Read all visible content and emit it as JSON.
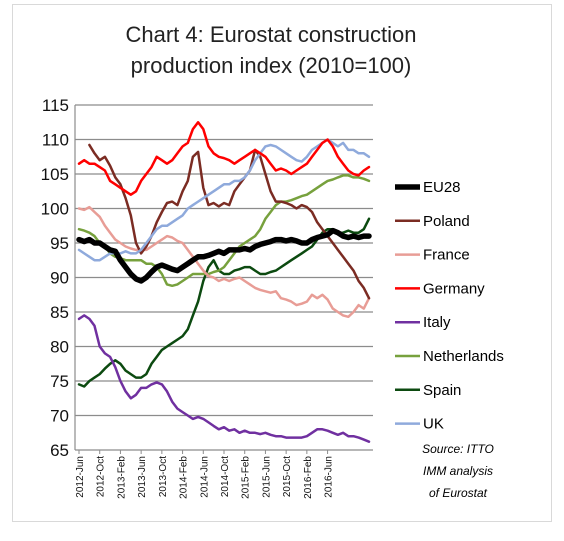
{
  "chart_data": {
    "type": "line",
    "title": [
      "Chart 4:  Eurostat construction",
      "production index (2010=100)"
    ],
    "xlabel": "",
    "ylabel": "",
    "ylim": [
      65,
      115
    ],
    "yticks": [
      65,
      70,
      75,
      80,
      85,
      90,
      95,
      100,
      105,
      110,
      115
    ],
    "xticks": [
      "2012-Jun",
      "2012-Oct",
      "2013-Feb",
      "2013-Jun",
      "2013-Oct",
      "2014-Feb",
      "2014-Jun",
      "2014-Oct",
      "2015-Feb",
      "2015-Jun",
      "2015-Oct",
      "2016-Feb",
      "2016-Jun"
    ],
    "x_start": "2012-06",
    "x_end": "2016-07",
    "grid": "horizontal",
    "legend": "right",
    "source_lines": [
      "Source: ITTO",
      "IMM analysis",
      "of  Eurostat"
    ],
    "series": [
      {
        "name": "EU28",
        "color": "#000000",
        "width": 5.5,
        "values": [
          95.5,
          95.2,
          95.5,
          95.0,
          95.0,
          94.5,
          94.0,
          93.8,
          92.5,
          91.5,
          90.5,
          89.8,
          89.5,
          90.0,
          90.8,
          91.5,
          91.8,
          91.5,
          91.2,
          91.0,
          91.5,
          92.0,
          92.5,
          93.0,
          93.0,
          93.2,
          93.5,
          93.8,
          93.5,
          94.0,
          94.0,
          94.0,
          94.2,
          94.0,
          94.5,
          94.8,
          95.0,
          95.2,
          95.5,
          95.5,
          95.3,
          95.5,
          95.3,
          95.0,
          95.0,
          95.5,
          95.8,
          96.0,
          96.2,
          96.8,
          96.5,
          96.0,
          95.8,
          96.0,
          95.8,
          96.0,
          96.0
        ]
      },
      {
        "name": "Poland",
        "color": "#7b2c23",
        "width": 2.5,
        "values": [
          null,
          null,
          109.2,
          108.0,
          107.0,
          107.5,
          106.2,
          104.5,
          103.5,
          101.5,
          99.0,
          95.0,
          93.5,
          94.5,
          96.0,
          98.0,
          99.5,
          100.8,
          101.0,
          100.5,
          102.5,
          104.0,
          107.5,
          108.2,
          103.0,
          100.5,
          100.8,
          100.3,
          100.8,
          100.5,
          102.5,
          103.5,
          104.5,
          105.5,
          108.5,
          107.5,
          105.0,
          102.5,
          101.0,
          101.0,
          100.8,
          100.5,
          100.0,
          100.5,
          100.2,
          99.5,
          98.0,
          97.0,
          96.0,
          95.0,
          94.0,
          93.0,
          92.0,
          91.0,
          89.5,
          88.5,
          87.0
        ]
      },
      {
        "name": "France",
        "color": "#e89d96",
        "width": 2.5,
        "values": [
          100.0,
          99.8,
          100.2,
          99.5,
          98.8,
          97.5,
          96.5,
          95.5,
          95.0,
          94.5,
          94.2,
          94.0,
          94.0,
          94.0,
          94.5,
          95.0,
          95.5,
          96.0,
          95.8,
          95.3,
          95.0,
          94.0,
          93.0,
          92.0,
          91.0,
          90.2,
          90.0,
          89.5,
          89.8,
          89.5,
          89.8,
          90.0,
          89.5,
          89.0,
          88.5,
          88.2,
          88.0,
          87.8,
          88.0,
          87.0,
          86.8,
          86.5,
          86.0,
          86.2,
          86.5,
          87.5,
          87.0,
          87.5,
          86.8,
          85.5,
          85.0,
          84.5,
          84.3,
          85.0,
          86.0,
          85.5,
          87.0
        ]
      },
      {
        "name": "Germany",
        "color": "#ff0000",
        "width": 2.5,
        "values": [
          106.5,
          107.0,
          106.5,
          106.5,
          106.0,
          105.5,
          104.0,
          103.5,
          103.0,
          102.5,
          102.0,
          102.5,
          104.0,
          105.0,
          106.0,
          107.5,
          107.0,
          106.5,
          107.0,
          108.0,
          109.0,
          109.5,
          111.5,
          112.5,
          111.5,
          109.0,
          108.0,
          107.5,
          107.3,
          107.0,
          106.5,
          107.0,
          107.5,
          108.0,
          108.5,
          108.0,
          107.5,
          106.5,
          105.5,
          105.8,
          105.5,
          105.0,
          105.5,
          106.0,
          106.5,
          107.5,
          108.5,
          109.5,
          110.0,
          109.0,
          107.5,
          106.5,
          105.5,
          105.0,
          104.8,
          105.5,
          106.0
        ]
      },
      {
        "name": "Italy",
        "color": "#7030a0",
        "width": 2.5,
        "values": [
          84.0,
          84.5,
          84.0,
          83.0,
          80.0,
          79.0,
          78.5,
          77.0,
          75.0,
          73.5,
          72.5,
          73.0,
          74.0,
          74.0,
          74.5,
          74.8,
          74.5,
          73.5,
          72.0,
          71.0,
          70.5,
          70.0,
          69.5,
          69.8,
          69.5,
          69.0,
          68.5,
          68.0,
          68.3,
          67.8,
          68.0,
          67.5,
          67.8,
          67.5,
          67.5,
          67.3,
          67.5,
          67.2,
          67.0,
          67.0,
          66.8,
          66.8,
          66.8,
          66.8,
          67.0,
          67.5,
          68.0,
          68.0,
          67.8,
          67.5,
          67.2,
          67.5,
          67.0,
          67.0,
          66.8,
          66.5,
          66.2
        ]
      },
      {
        "name": "Netherlands",
        "color": "#77a13d",
        "width": 2.5,
        "values": [
          97.0,
          96.8,
          96.5,
          96.0,
          95.0,
          94.5,
          93.5,
          93.0,
          92.8,
          92.5,
          92.5,
          92.5,
          92.5,
          92.0,
          92.0,
          91.5,
          90.5,
          89.0,
          88.8,
          89.0,
          89.5,
          90.0,
          90.5,
          90.5,
          90.5,
          90.5,
          90.8,
          91.0,
          91.5,
          92.5,
          93.5,
          94.5,
          95.0,
          95.5,
          96.0,
          97.0,
          98.5,
          99.5,
          100.5,
          101.0,
          101.0,
          101.2,
          101.5,
          101.8,
          102.0,
          102.5,
          103.0,
          103.5,
          104.0,
          104.2,
          104.5,
          104.8,
          104.8,
          104.5,
          104.5,
          104.3,
          104.0
        ]
      },
      {
        "name": "Spain",
        "color": "#0c4a10",
        "width": 2.5,
        "values": [
          74.5,
          74.2,
          75.0,
          75.5,
          76.0,
          76.8,
          77.5,
          78.0,
          77.5,
          76.5,
          76.0,
          75.5,
          75.5,
          76.0,
          77.5,
          78.5,
          79.5,
          80.0,
          80.5,
          81.0,
          81.5,
          82.5,
          84.5,
          86.5,
          89.5,
          91.5,
          92.5,
          91.0,
          90.5,
          90.5,
          91.0,
          91.2,
          91.5,
          91.5,
          91.0,
          90.5,
          90.5,
          90.8,
          91.0,
          91.5,
          92.0,
          92.5,
          93.0,
          93.5,
          94.0,
          94.5,
          95.5,
          96.5,
          97.0,
          97.0,
          96.5,
          96.5,
          96.8,
          96.5,
          96.5,
          97.0,
          98.5
        ]
      },
      {
        "name": "UK",
        "color": "#8faadc",
        "width": 2.5,
        "values": [
          94.0,
          93.5,
          93.0,
          92.5,
          92.5,
          93.0,
          93.5,
          93.5,
          93.5,
          93.8,
          93.5,
          93.5,
          94.0,
          95.0,
          96.0,
          97.0,
          97.5,
          97.5,
          98.0,
          98.5,
          99.0,
          100.0,
          100.5,
          101.0,
          101.5,
          102.0,
          102.5,
          103.0,
          103.5,
          103.5,
          104.0,
          104.0,
          104.5,
          105.5,
          107.0,
          108.0,
          109.0,
          109.2,
          109.0,
          108.5,
          108.0,
          107.5,
          107.0,
          106.8,
          107.5,
          108.5,
          109.0,
          109.5,
          110.0,
          109.5,
          109.0,
          109.5,
          108.5,
          108.5,
          108.0,
          108.0,
          107.5
        ]
      }
    ]
  }
}
